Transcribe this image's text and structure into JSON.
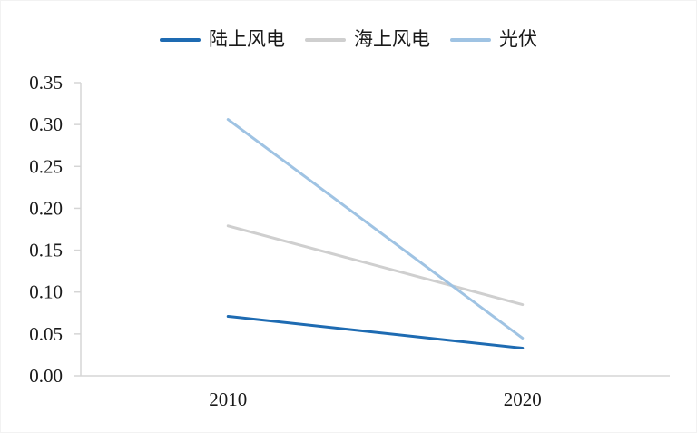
{
  "chart_data": {
    "type": "line",
    "title": "",
    "categories": [
      "2010",
      "2020"
    ],
    "series": [
      {
        "name": "陆上风电",
        "values": [
          0.071,
          0.033
        ],
        "color": "#1E6BB2"
      },
      {
        "name": "海上风电",
        "values": [
          0.179,
          0.085
        ],
        "color": "#CFCFCF"
      },
      {
        "name": "光伏",
        "values": [
          0.306,
          0.045
        ],
        "color": "#9FC3E3"
      }
    ],
    "ylim": [
      0,
      0.35
    ],
    "ytick_step": 0.05,
    "ytick_labels": [
      "0.00",
      "0.05",
      "0.10",
      "0.15",
      "0.20",
      "0.25",
      "0.30",
      "0.35"
    ],
    "xlabel": "",
    "ylabel": "",
    "grid": false,
    "legend_position": "top",
    "colors": {
      "axis": "#D5D5D5",
      "text": "#1A1A1A",
      "background": "#FFFFFF"
    }
  }
}
